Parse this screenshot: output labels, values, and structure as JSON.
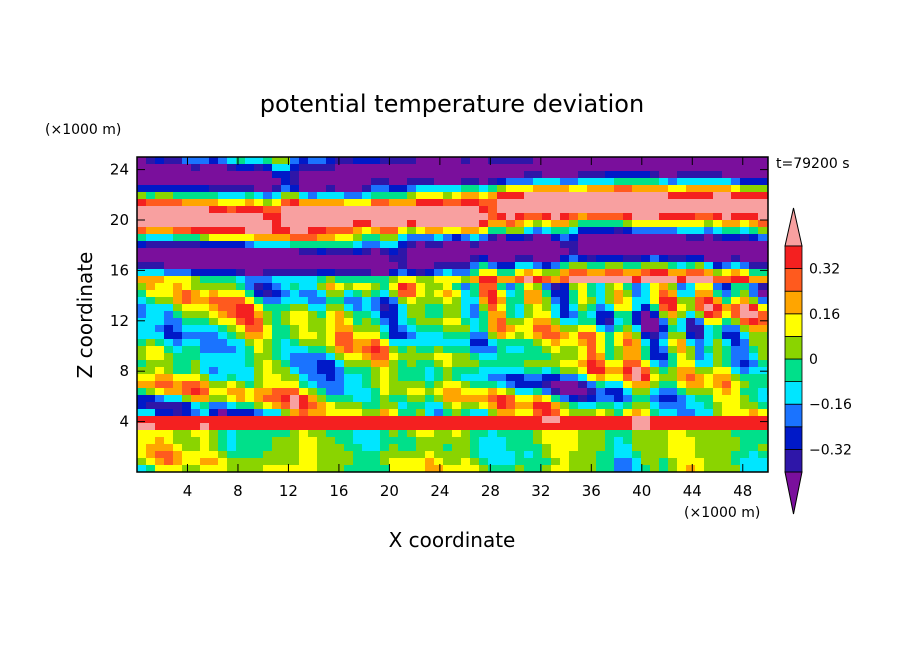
{
  "chart_data": {
    "type": "heatmap",
    "title": "potential temperature deviation",
    "time_label": "t=79200 s",
    "xlabel": "X coordinate",
    "ylabel": "Z coordinate",
    "x_unit": "(×1000 m)",
    "y_unit": "(×1000 m)",
    "xlim": [
      0,
      50
    ],
    "ylim": [
      0,
      25
    ],
    "x_ticks": [
      4,
      8,
      12,
      16,
      20,
      24,
      28,
      32,
      36,
      40,
      44,
      48
    ],
    "y_ticks": [
      4,
      8,
      12,
      16,
      20,
      24
    ],
    "colorbar": {
      "levels": [
        -0.4,
        -0.32,
        -0.24,
        -0.16,
        -0.08,
        0,
        0.08,
        0.16,
        0.24,
        0.32,
        0.4
      ],
      "colors": [
        "#7a0f9c",
        "#2e16a8",
        "#0019c8",
        "#1a73ff",
        "#00e6ff",
        "#00e08a",
        "#8ad400",
        "#ffff00",
        "#ffa500",
        "#ff5a1e",
        "#f42020",
        "#f8a0a0"
      ],
      "tick_labels": [
        "0.32",
        "0.16",
        "0",
        "−0.16",
        "−0.32"
      ],
      "tick_values": [
        0.32,
        0.16,
        0,
        -0.16,
        -0.32
      ],
      "extend": "both"
    },
    "field_pattern": {
      "layers": [
        {
          "z_range": [
            0,
            3.5
          ],
          "character": "near-neutral, mixed warm/cold cells",
          "levels_range": [
            -0.2,
            0.25
          ]
        },
        {
          "z_range": [
            3.5,
            4.5
          ],
          "character": "thin warm band",
          "levels_range": [
            0.3,
            0.45
          ]
        },
        {
          "z_range": [
            4.5,
            15
          ],
          "character": "turbulent alternating warm/cold",
          "levels_range": [
            -0.45,
            0.45
          ]
        },
        {
          "z_range": [
            15,
            25
          ],
          "character": "large warm/cold strata",
          "levels_range": [
            -0.45,
            0.45
          ]
        }
      ]
    }
  }
}
